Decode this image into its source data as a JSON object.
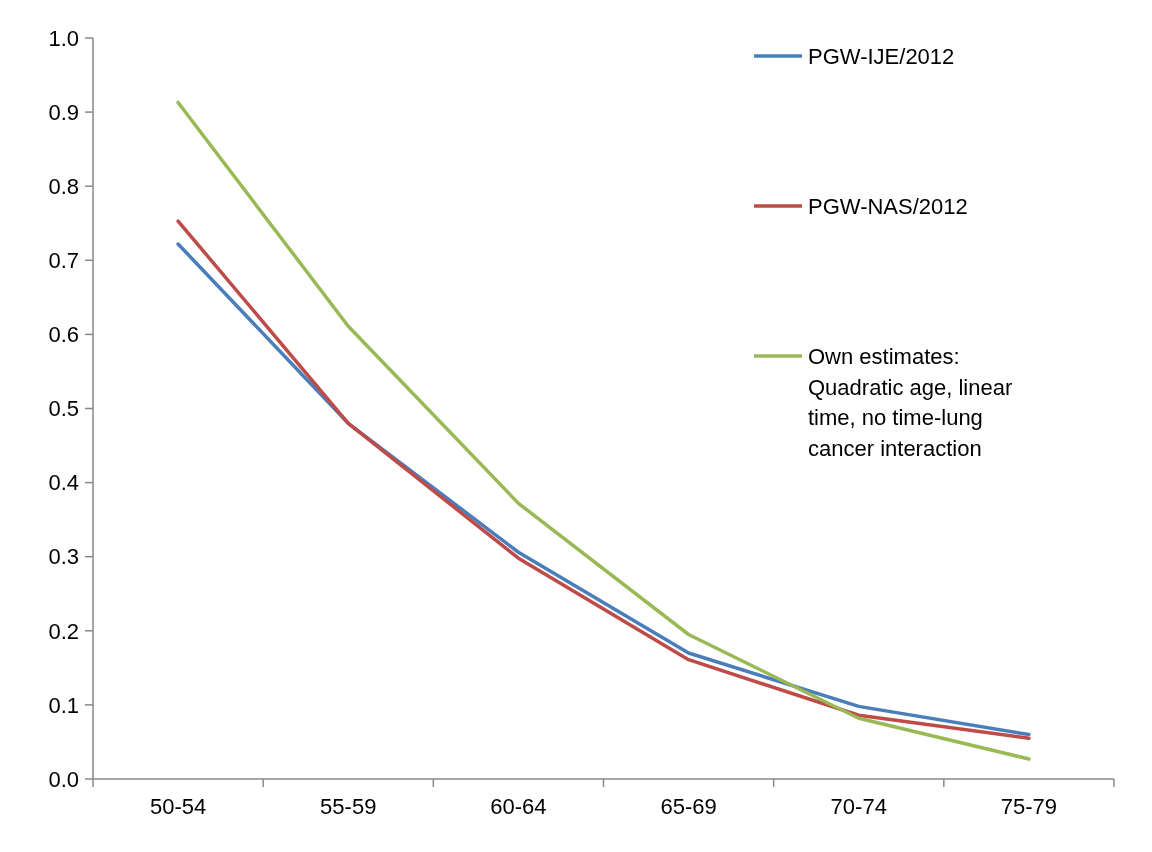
{
  "chart_data": {
    "type": "line",
    "categories": [
      "50-54",
      "55-59",
      "60-64",
      "65-69",
      "70-74",
      "75-79"
    ],
    "ylim": [
      0,
      1
    ],
    "yticks": [
      {
        "value": 0,
        "label": "0.0"
      },
      0.1,
      0.2,
      0.3,
      0.4,
      0.5,
      0.6,
      0.7,
      0.8,
      0.9,
      {
        "value": 1,
        "label": "1.0"
      }
    ],
    "grid": false,
    "legend": "top right",
    "marker": "none",
    "line_style": "solid",
    "series": [
      {
        "name": "PGW-IJE/2012",
        "color": "#4a7ebb",
        "values": [
          0.722,
          0.48,
          0.306,
          0.17,
          0.098,
          0.06
        ]
      },
      {
        "name": "PGW-NAS/2012",
        "color": "#be4b48",
        "values": [
          0.753,
          0.48,
          0.298,
          0.161,
          0.086,
          0.055
        ]
      },
      {
        "name": "Own estimates: Quadratic age, linear time, no time-lung cancer interaction",
        "color": "#98b954",
        "values": [
          0.913,
          0.611,
          0.372,
          0.195,
          0.082,
          0.027
        ]
      }
    ]
  }
}
